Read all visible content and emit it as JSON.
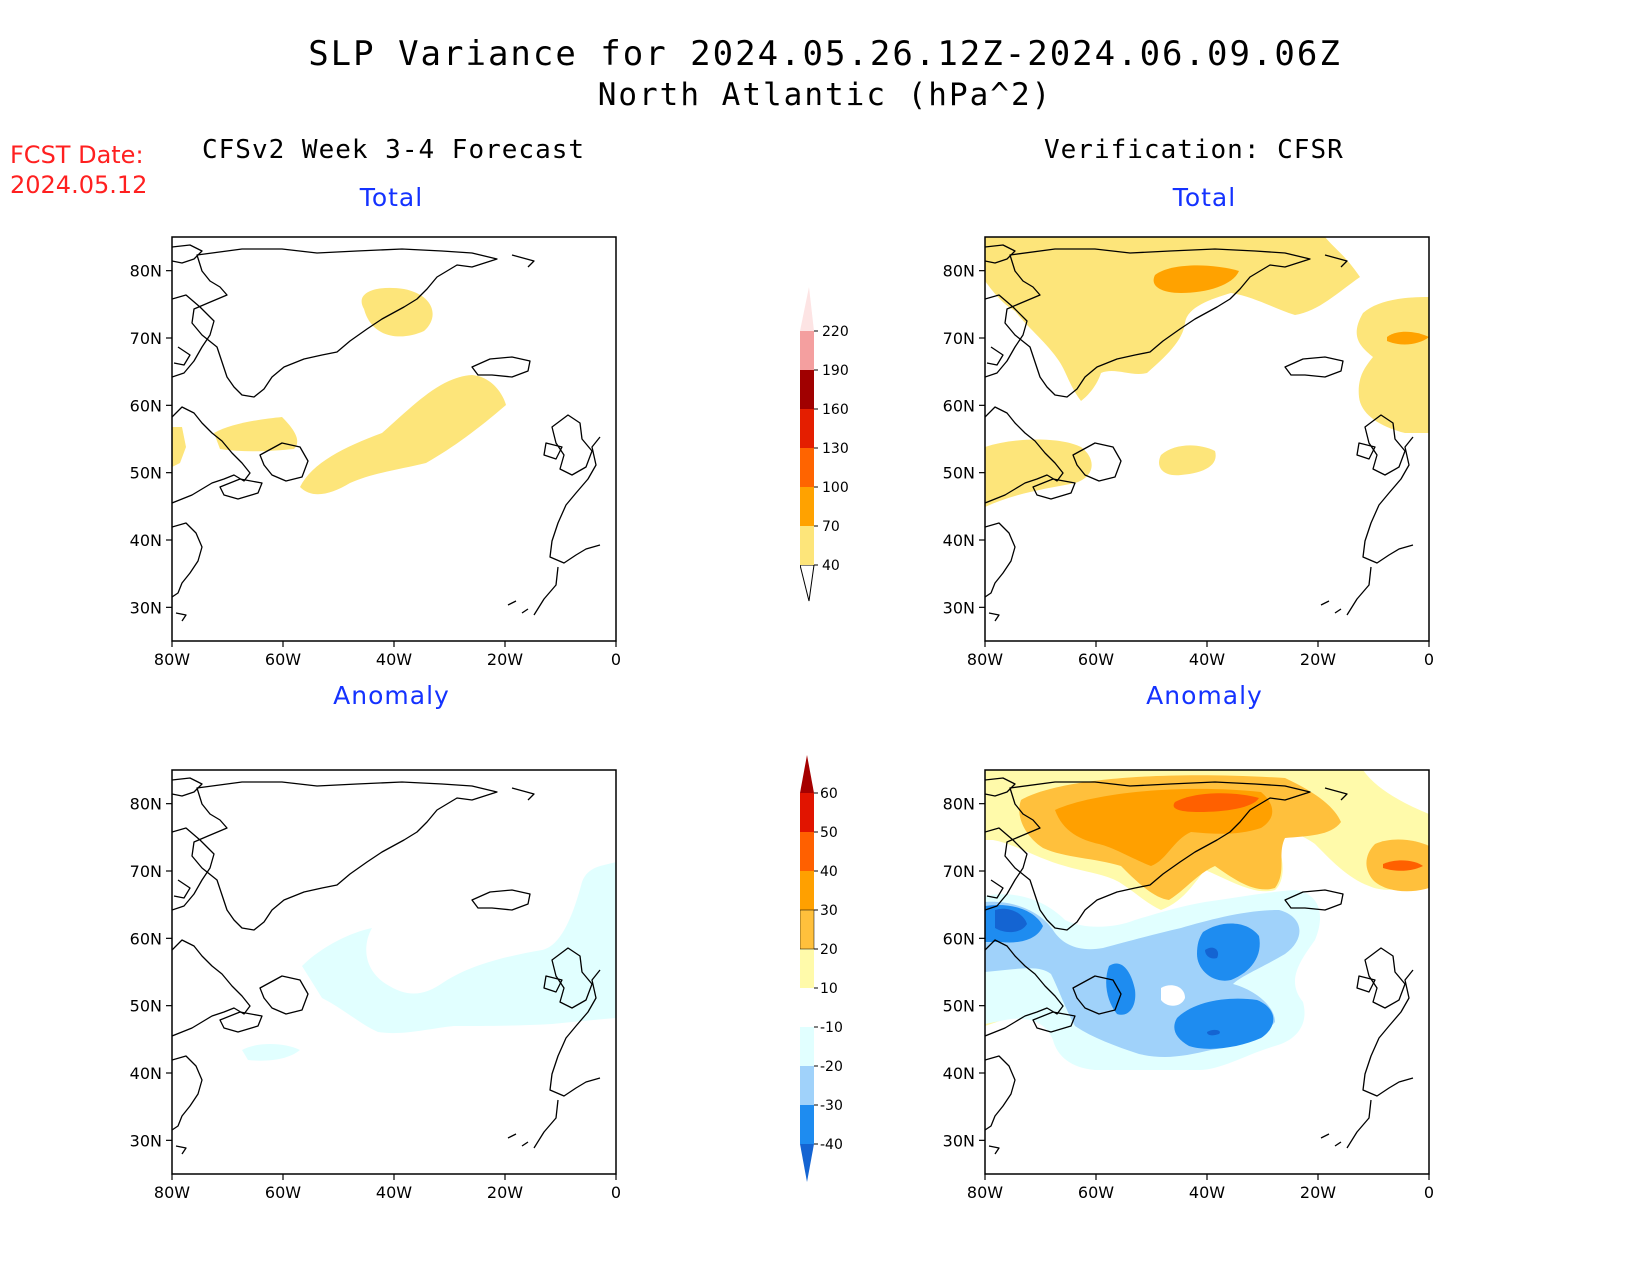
{
  "title": "SLP Variance for 2024.05.26.12Z-2024.06.09.06Z",
  "subtitle": "North Atlantic (hPa^2)",
  "fcst_label": "FCST Date:",
  "fcst_date": "2024.05.12",
  "left_column_title": "CFSv2 Week 3-4 Forecast",
  "right_column_title": "Verification: CFSR",
  "panel_titles": {
    "top_left": "Total",
    "top_right": "Total",
    "bottom_left": "Anomaly",
    "bottom_right": "Anomaly"
  },
  "lat_labels": [
    "80N",
    "70N",
    "60N",
    "50N",
    "40N",
    "30N"
  ],
  "lon_labels": [
    "80W",
    "60W",
    "40W",
    "20W",
    "0"
  ],
  "colorbar_total": {
    "labels": [
      "40",
      "70",
      "100",
      "130",
      "160",
      "190",
      "220"
    ],
    "colors": [
      "#fde57a",
      "#ffa200",
      "#ff6400",
      "#e41e00",
      "#a00000",
      "#f49f9f",
      "#fde4e4"
    ]
  },
  "colorbar_anomaly": {
    "labels": [
      "-40",
      "-30",
      "-20",
      "-10",
      "10",
      "20",
      "30",
      "40",
      "50",
      "60"
    ],
    "colors": [
      "#1464d2",
      "#1e8cf0",
      "#a0d2fa",
      "#e1ffff",
      "#ffffff",
      "#fffaaa",
      "#ffc03c",
      "#ffa000",
      "#ff6000",
      "#e11400",
      "#a50000"
    ]
  },
  "chart_data": {
    "type": "map",
    "region": "North Atlantic",
    "units": "hPa^2",
    "lon_range": [
      -80,
      0
    ],
    "lat_range": [
      25,
      85
    ],
    "panels": [
      {
        "panel": "CFSv2 Week 3-4 Forecast / Total",
        "features": [
          {
            "level": "40-70",
            "area": "south-central Greenland ice sheet"
          },
          {
            "level": "40-70",
            "area": "band from Newfoundland northeast toward 60N 25W"
          },
          {
            "level": "40-70",
            "area": "Labrador / Hudson Bay area near 55N 70W"
          }
        ]
      },
      {
        "panel": "Verification CFSR / Total",
        "features": [
          {
            "level": "40-70",
            "area": "northern Greenland and Baffin Bay"
          },
          {
            "level": "70-100",
            "area": "north-central Greenland near 80N 40W"
          },
          {
            "level": "40-70",
            "area": "Norwegian Sea eastern edge"
          },
          {
            "level": "70-100",
            "area": "near 70N 5W"
          },
          {
            "level": "40-70",
            "area": "Quebec / Labrador near 50N 75W"
          }
        ]
      },
      {
        "panel": "CFSv2 Week 3-4 Forecast / Anomaly",
        "features": [
          {
            "level": "-20 to -10",
            "area": "band 45-60N from 55W to 0"
          }
        ]
      },
      {
        "panel": "Verification CFSR / Anomaly",
        "features": [
          {
            "level": "10 to 30+",
            "area": "Greenland / high Arctic"
          },
          {
            "level": "40-50",
            "area": "near 80N 40W and 70N 5W"
          },
          {
            "level": "-40 to -10",
            "area": "central North Atlantic 40-60N"
          }
        ]
      }
    ]
  }
}
